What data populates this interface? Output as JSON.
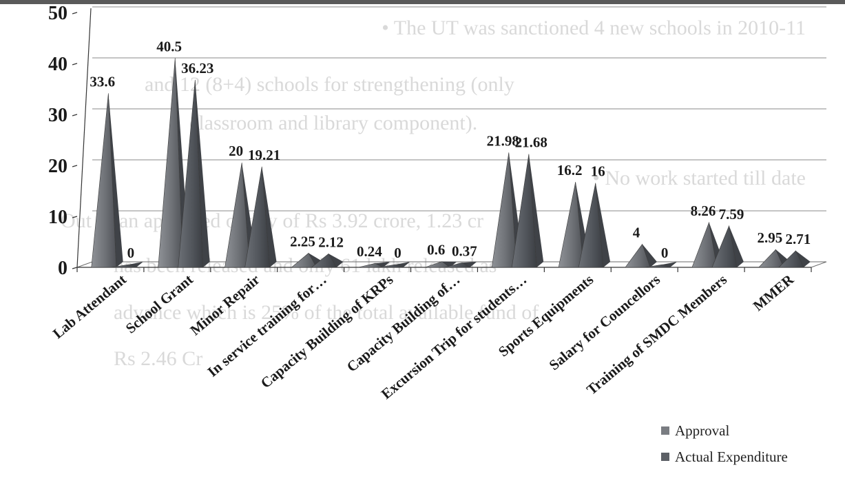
{
  "background_text": {
    "lines": [
      "• The UT was sanctioned 4 new schools in 2010-11",
      "and 12 (8+4) schools for strengthening (only",
      "classroom and library component).",
      "• No work started till date",
      "Out of an approved outlay of Rs 3.92 crore, 1.23 cr",
      "has been released and only 61 lakh released as",
      "advance which is 25% of the total available fund of",
      "Rs 2.46 Cr"
    ]
  },
  "chart_data": {
    "type": "bar",
    "bar_shape": "pyramid-3d",
    "categories": [
      "Lab Attendant",
      "School Grant",
      "Minor Repair",
      "In service training for…",
      "Capacity Building of KRPs",
      "Capacity Building of…",
      "Excursion Trip for students…",
      "Sports Equipments",
      "Salary for Councellors",
      "Training of SMDC Members",
      "MMER"
    ],
    "series": [
      {
        "name": "Approval",
        "values": [
          33.6,
          40.5,
          20,
          2.25,
          0.24,
          0.6,
          21.98,
          16.2,
          4,
          8.26,
          2.95
        ],
        "labels": [
          "33.6",
          "40.5",
          "20",
          "2.25",
          "0.24",
          "0.6",
          "21.98",
          "16.2",
          "4",
          "8.26",
          "2.95"
        ],
        "color": "#7a7d82"
      },
      {
        "name": "Actual Expenditure",
        "values": [
          0,
          36.23,
          19.21,
          2.12,
          0,
          0.37,
          21.68,
          16,
          0,
          7.59,
          2.71
        ],
        "labels": [
          "0",
          "36.23",
          "19.21",
          "2.12",
          "0",
          "0.37",
          "21.68",
          "16",
          "0",
          "7.59",
          "2.71"
        ],
        "color": "#5c6066"
      }
    ],
    "ylim": [
      0,
      50
    ],
    "yticks": [
      "0",
      "10",
      "20",
      "30",
      "40",
      "50"
    ],
    "grid": true,
    "legend_position": "bottom-right",
    "title": "",
    "xlabel": "",
    "ylabel": ""
  }
}
